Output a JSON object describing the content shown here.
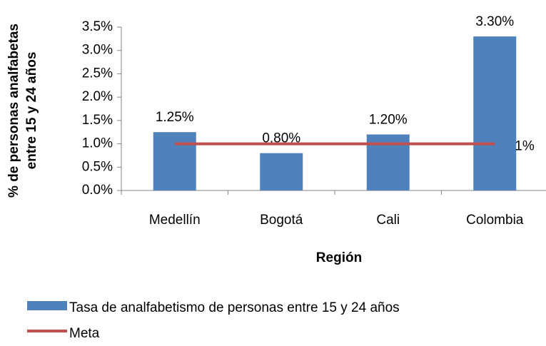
{
  "chart_data": {
    "type": "bar",
    "x_label": "Región",
    "y_label": [
      "% de personas analfabetas",
      "entre 15 y 24 años"
    ],
    "categories": [
      "Medellín",
      "Bogotá",
      "Cali",
      "Colombia"
    ],
    "series": [
      {
        "name": "Tasa de analfabetismo de personas entre 15 y 24 años",
        "type": "bar",
        "color": "#4f81bd",
        "values": [
          1.25,
          0.8,
          1.2,
          3.3
        ],
        "value_labels": [
          "1.25%",
          "0.80%",
          "1.20%",
          "3.30%"
        ]
      },
      {
        "name": "Meta",
        "type": "line",
        "color": "#c0504d",
        "values": [
          1,
          1,
          1,
          1
        ],
        "value_labels": [
          null,
          null,
          null,
          "1%"
        ]
      }
    ],
    "ylim": [
      0,
      3.5
    ],
    "yticks": [
      {
        "value": 0,
        "label": "0.0%"
      },
      {
        "value": 0.5,
        "label": "0.5%"
      },
      {
        "value": 1,
        "label": "1.0%"
      },
      {
        "value": 1.5,
        "label": "1.5%"
      },
      {
        "value": 2,
        "label": "2.0%"
      },
      {
        "value": 2.5,
        "label": "2.5%"
      },
      {
        "value": 3,
        "label": "3.0%"
      },
      {
        "value": 3.5,
        "label": "3.5%"
      }
    ],
    "legend": "bottom"
  }
}
